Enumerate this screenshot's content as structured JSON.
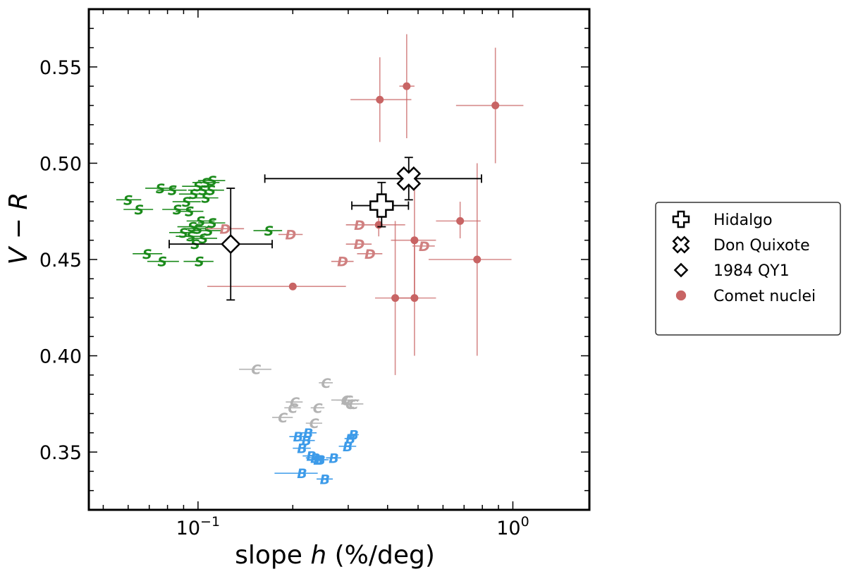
{
  "chart_data": {
    "type": "scatter",
    "xscale": "log",
    "xlim": [
      0.045,
      1.75
    ],
    "ylim": [
      0.32,
      0.58
    ],
    "xlabel": "slope h (%/deg)",
    "ylabel": "V − R",
    "xlabel_parts": {
      "pre": "slope ",
      "var": "h",
      "post": " (%/deg)"
    },
    "ylabel_parts": {
      "v": "V",
      "op": " − ",
      "r": "R"
    },
    "yticks": [
      {
        "value": 0.35,
        "label": "0.35"
      },
      {
        "value": 0.4,
        "label": "0.40"
      },
      {
        "value": 0.45,
        "label": "0.45"
      },
      {
        "value": 0.5,
        "label": "0.50"
      },
      {
        "value": 0.55,
        "label": "0.55"
      }
    ],
    "xticks": [
      {
        "value": 0.1,
        "base": "10",
        "exp": "−1"
      },
      {
        "value": 1.0,
        "base": "10",
        "exp": "0"
      }
    ],
    "legend_position": "outside-right",
    "colors": {
      "S": "#1a8a1a",
      "D": "#d08080",
      "C": "#b3b3b3",
      "B": "#3d9be9",
      "comet": "#c86464",
      "black": "#000000"
    },
    "legend": [
      {
        "label": "Hidalgo",
        "marker": "plus"
      },
      {
        "label": "Don Quixote",
        "marker": "x"
      },
      {
        "label": "1984 QY1",
        "marker": "diamond"
      },
      {
        "label": "Comet nuclei",
        "marker": "dot"
      }
    ],
    "highlighted": [
      {
        "name": "Hidalgo",
        "marker": "plus",
        "x": 0.383,
        "y": 0.478,
        "xerr": [
          0.308,
          0.466
        ],
        "yerr": [
          0.467,
          0.49
        ]
      },
      {
        "name": "Don Quixote",
        "marker": "x",
        "x": 0.467,
        "y": 0.492,
        "xerr": [
          0.163,
          0.795
        ],
        "yerr": [
          0.481,
          0.503
        ]
      },
      {
        "name": "1984 QY1",
        "marker": "diamond",
        "x": 0.127,
        "y": 0.458,
        "xerr": [
          0.081,
          0.172
        ],
        "yerr": [
          0.429,
          0.487
        ]
      }
    ],
    "comet_nuclei": [
      {
        "x": 0.378,
        "y": 0.533,
        "xerr": [
          0.305,
          0.476
        ],
        "yerr": [
          0.511,
          0.555
        ]
      },
      {
        "x": 0.46,
        "y": 0.54,
        "xerr": [
          0.436,
          0.487
        ],
        "yerr": [
          0.513,
          0.567
        ]
      },
      {
        "x": 0.88,
        "y": 0.53,
        "xerr": [
          0.66,
          1.08
        ],
        "yerr": [
          0.5,
          0.56
        ]
      },
      {
        "x": 0.68,
        "y": 0.47,
        "xerr": [
          0.57,
          0.79
        ],
        "yerr": [
          0.461,
          0.48
        ]
      },
      {
        "x": 0.375,
        "y": 0.468,
        "xerr": [
          0.31,
          0.455
        ],
        "yerr": [
          0.462,
          0.474
        ]
      },
      {
        "x": 0.487,
        "y": 0.46,
        "xerr": [
          0.41,
          0.57
        ],
        "yerr": [
          0.43,
          0.49
        ]
      },
      {
        "x": 0.77,
        "y": 0.45,
        "xerr": [
          0.54,
          0.99
        ],
        "yerr": [
          0.4,
          0.5
        ]
      },
      {
        "x": 0.2,
        "y": 0.436,
        "xerr": [
          0.107,
          0.295
        ],
        "yerr": [
          0.436,
          0.436
        ]
      },
      {
        "x": 0.423,
        "y": 0.43,
        "xerr": [
          0.365,
          0.478
        ],
        "yerr": [
          0.39,
          0.47
        ]
      },
      {
        "x": 0.487,
        "y": 0.43,
        "xerr": [
          0.425,
          0.57
        ],
        "yerr": [
          0.4,
          0.46
        ]
      }
    ],
    "taxonomy": [
      {
        "label": "S",
        "x": 0.06,
        "y": 0.481,
        "xerr": [
          0.055,
          0.066
        ]
      },
      {
        "label": "S",
        "x": 0.065,
        "y": 0.476,
        "xerr": [
          0.058,
          0.072
        ]
      },
      {
        "label": "S",
        "x": 0.076,
        "y": 0.487,
        "xerr": [
          0.068,
          0.085
        ]
      },
      {
        "label": "S",
        "x": 0.083,
        "y": 0.486,
        "xerr": [
          0.074,
          0.092
        ]
      },
      {
        "label": "S",
        "x": 0.1,
        "y": 0.488,
        "xerr": [
          0.089,
          0.11
        ]
      },
      {
        "label": "S",
        "x": 0.106,
        "y": 0.49,
        "xerr": [
          0.096,
          0.117
        ]
      },
      {
        "label": "S",
        "x": 0.111,
        "y": 0.491,
        "xerr": [
          0.1,
          0.122
        ]
      },
      {
        "label": "S",
        "x": 0.104,
        "y": 0.486,
        "xerr": [
          0.093,
          0.115
        ]
      },
      {
        "label": "S",
        "x": 0.11,
        "y": 0.486,
        "xerr": [
          0.099,
          0.121
        ]
      },
      {
        "label": "S",
        "x": 0.097,
        "y": 0.484,
        "xerr": [
          0.087,
          0.108
        ]
      },
      {
        "label": "S",
        "x": 0.106,
        "y": 0.482,
        "xerr": [
          0.096,
          0.116
        ]
      },
      {
        "label": "S",
        "x": 0.092,
        "y": 0.48,
        "xerr": [
          0.083,
          0.102
        ]
      },
      {
        "label": "S",
        "x": 0.086,
        "y": 0.476,
        "xerr": [
          0.077,
          0.095
        ]
      },
      {
        "label": "S",
        "x": 0.094,
        "y": 0.475,
        "xerr": [
          0.085,
          0.104
        ]
      },
      {
        "label": "S",
        "x": 0.102,
        "y": 0.47,
        "xerr": [
          0.092,
          0.113
        ]
      },
      {
        "label": "S",
        "x": 0.111,
        "y": 0.469,
        "xerr": [
          0.1,
          0.122
        ]
      },
      {
        "label": "S",
        "x": 0.096,
        "y": 0.467,
        "xerr": [
          0.086,
          0.106
        ]
      },
      {
        "label": "S",
        "x": 0.1,
        "y": 0.466,
        "xerr": [
          0.09,
          0.11
        ]
      },
      {
        "label": "S",
        "x": 0.108,
        "y": 0.465,
        "xerr": [
          0.097,
          0.119
        ]
      },
      {
        "label": "S",
        "x": 0.09,
        "y": 0.464,
        "xerr": [
          0.081,
          0.099
        ]
      },
      {
        "label": "S",
        "x": 0.095,
        "y": 0.462,
        "xerr": [
          0.085,
          0.105
        ]
      },
      {
        "label": "S",
        "x": 0.104,
        "y": 0.461,
        "xerr": [
          0.093,
          0.115
        ]
      },
      {
        "label": "S",
        "x": 0.098,
        "y": 0.458,
        "xerr": [
          0.088,
          0.108
        ]
      },
      {
        "label": "S",
        "x": 0.168,
        "y": 0.465,
        "xerr": [
          0.15,
          0.185
        ]
      },
      {
        "label": "S",
        "x": 0.069,
        "y": 0.453,
        "xerr": [
          0.062,
          0.077
        ]
      },
      {
        "label": "S",
        "x": 0.077,
        "y": 0.449,
        "xerr": [
          0.069,
          0.087
        ]
      },
      {
        "label": "S",
        "x": 0.101,
        "y": 0.449,
        "xerr": [
          0.09,
          0.112
        ]
      },
      {
        "label": "D",
        "x": 0.122,
        "y": 0.466,
        "xerr": [
          0.106,
          0.14
        ]
      },
      {
        "label": "D",
        "x": 0.197,
        "y": 0.463,
        "xerr": [
          0.18,
          0.215
        ]
      },
      {
        "label": "D",
        "x": 0.326,
        "y": 0.468,
        "xerr": [
          0.295,
          0.36
        ]
      },
      {
        "label": "D",
        "x": 0.325,
        "y": 0.458,
        "xerr": [
          0.295,
          0.356
        ]
      },
      {
        "label": "D",
        "x": 0.288,
        "y": 0.449,
        "xerr": [
          0.265,
          0.312
        ]
      },
      {
        "label": "D",
        "x": 0.352,
        "y": 0.453,
        "xerr": [
          0.32,
          0.385
        ]
      },
      {
        "label": "D",
        "x": 0.523,
        "y": 0.457,
        "xerr": [
          0.48,
          0.565
        ]
      },
      {
        "label": "D",
        "x": 0.388,
        "y": 0.478,
        "xerr": [
          0.36,
          0.418
        ]
      },
      {
        "label": "C",
        "x": 0.153,
        "y": 0.393,
        "xerr": [
          0.135,
          0.171
        ]
      },
      {
        "label": "C",
        "x": 0.255,
        "y": 0.386,
        "xerr": [
          0.242,
          0.268
        ]
      },
      {
        "label": "C",
        "x": 0.203,
        "y": 0.376,
        "xerr": [
          0.19,
          0.215
        ]
      },
      {
        "label": "C",
        "x": 0.2,
        "y": 0.373,
        "xerr": [
          0.188,
          0.212
        ]
      },
      {
        "label": "C",
        "x": 0.24,
        "y": 0.373,
        "xerr": [
          0.228,
          0.252
        ]
      },
      {
        "label": "C",
        "x": 0.186,
        "y": 0.368,
        "xerr": [
          0.172,
          0.2
        ]
      },
      {
        "label": "C",
        "x": 0.234,
        "y": 0.365,
        "xerr": [
          0.22,
          0.248
        ]
      },
      {
        "label": "C",
        "x": 0.295,
        "y": 0.377,
        "xerr": [
          0.265,
          0.325
        ]
      },
      {
        "label": "C",
        "x": 0.3,
        "y": 0.377,
        "xerr": [
          0.275,
          0.325
        ]
      },
      {
        "label": "C",
        "x": 0.305,
        "y": 0.375,
        "xerr": [
          0.285,
          0.325
        ]
      },
      {
        "label": "C",
        "x": 0.312,
        "y": 0.375,
        "xerr": [
          0.29,
          0.335
        ]
      },
      {
        "label": "B",
        "x": 0.208,
        "y": 0.358,
        "xerr": [
          0.195,
          0.222
        ]
      },
      {
        "label": "B",
        "x": 0.224,
        "y": 0.36,
        "xerr": [
          0.21,
          0.238
        ]
      },
      {
        "label": "B",
        "x": 0.221,
        "y": 0.356,
        "xerr": [
          0.207,
          0.235
        ]
      },
      {
        "label": "B",
        "x": 0.214,
        "y": 0.352,
        "xerr": [
          0.2,
          0.228
        ]
      },
      {
        "label": "B",
        "x": 0.229,
        "y": 0.348,
        "xerr": [
          0.215,
          0.243
        ]
      },
      {
        "label": "B",
        "x": 0.236,
        "y": 0.347,
        "xerr": [
          0.22,
          0.252
        ]
      },
      {
        "label": "B",
        "x": 0.241,
        "y": 0.346,
        "xerr": [
          0.226,
          0.256
        ]
      },
      {
        "label": "B",
        "x": 0.245,
        "y": 0.346,
        "xerr": [
          0.23,
          0.26
        ]
      },
      {
        "label": "B",
        "x": 0.27,
        "y": 0.347,
        "xerr": [
          0.255,
          0.285
        ]
      },
      {
        "label": "B",
        "x": 0.299,
        "y": 0.353,
        "xerr": [
          0.28,
          0.318
        ]
      },
      {
        "label": "B",
        "x": 0.305,
        "y": 0.357,
        "xerr": [
          0.292,
          0.318
        ]
      },
      {
        "label": "B",
        "x": 0.312,
        "y": 0.359,
        "xerr": [
          0.3,
          0.324
        ]
      },
      {
        "label": "B",
        "x": 0.214,
        "y": 0.339,
        "xerr": [
          0.175,
          0.24
        ]
      },
      {
        "label": "B",
        "x": 0.253,
        "y": 0.336,
        "xerr": [
          0.238,
          0.268
        ]
      }
    ]
  }
}
